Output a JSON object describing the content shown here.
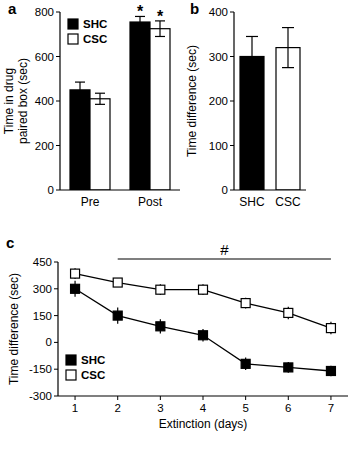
{
  "chart_data": [
    {
      "type": "bar",
      "panel": "a",
      "ylabel": "Time in drug paired box (sec)",
      "categories": [
        "Pre",
        "Post"
      ],
      "series": [
        {
          "name": "SHC",
          "color": "#000000",
          "values": [
            450,
            755
          ],
          "errors": [
            35,
            25
          ]
        },
        {
          "name": "CSC",
          "color": "#ffffff",
          "values": [
            410,
            725
          ],
          "errors": [
            25,
            35
          ]
        }
      ],
      "significance": [
        {
          "text": "*",
          "series": 0,
          "index": 1
        },
        {
          "text": "*",
          "series": 1,
          "index": 1
        }
      ],
      "ylim": [
        0,
        800
      ],
      "yticks": [
        0,
        200,
        400,
        600,
        800
      ],
      "legend": "upper left",
      "grid": false
    },
    {
      "type": "bar",
      "panel": "b",
      "ylabel": "Time difference (sec)",
      "categories": [
        "SHC",
        "CSC"
      ],
      "values": [
        300,
        320
      ],
      "errors": [
        45,
        45
      ],
      "colors": [
        "#000000",
        "#ffffff"
      ],
      "ylim": [
        0,
        400
      ],
      "yticks": [
        0,
        100,
        200,
        300,
        400
      ],
      "grid": false
    },
    {
      "type": "line",
      "panel": "c",
      "ylabel": "Time difference (sec)",
      "xlabel": "Extinction (days)",
      "x": [
        1,
        2,
        3,
        4,
        5,
        6,
        7
      ],
      "series": [
        {
          "name": "SHC",
          "color": "#000000",
          "marker": "square",
          "values": [
            300,
            150,
            90,
            40,
            -120,
            -140,
            -160
          ],
          "errors": [
            45,
            45,
            40,
            35,
            35,
            30,
            30
          ]
        },
        {
          "name": "CSC",
          "color": "#ffffff",
          "marker": "square",
          "values": [
            385,
            335,
            295,
            295,
            220,
            165,
            80
          ],
          "errors": [
            30,
            25,
            30,
            30,
            30,
            35,
            35
          ]
        }
      ],
      "annotations": [
        {
          "text": "#",
          "x_from": 2,
          "x_to": 7
        }
      ],
      "xlim": [
        0.6,
        7.4
      ],
      "xticks": [
        1,
        2,
        3,
        4,
        5,
        6,
        7
      ],
      "ylim": [
        -300,
        450
      ],
      "yticks": [
        -300,
        -150,
        0,
        150,
        300,
        450
      ],
      "legend": "lower left",
      "grid": false
    }
  ]
}
